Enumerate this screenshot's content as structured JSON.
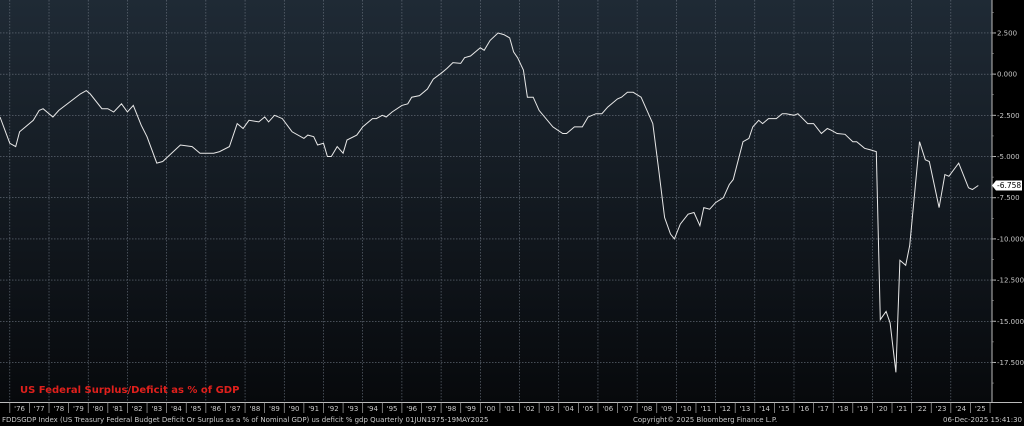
{
  "chart_data": {
    "type": "line",
    "title": "US Federal Surplus/Deficit as % of GDP",
    "xlabel": "",
    "ylabel": "",
    "x_tick_labels": [
      "'76",
      "'77",
      "'78",
      "'79",
      "'80",
      "'81",
      "'82",
      "'83",
      "'84",
      "'85",
      "'86",
      "'87",
      "'88",
      "'89",
      "'90",
      "'91",
      "'92",
      "'93",
      "'94",
      "'95",
      "'96",
      "'97",
      "'98",
      "'99",
      "'00",
      "'01",
      "'02",
      "'03",
      "'04",
      "'05",
      "'06",
      "'07",
      "'08",
      "'09",
      "'10",
      "'11",
      "'12",
      "'13",
      "'14",
      "'15",
      "'16",
      "'17",
      "'18",
      "'19",
      "'20",
      "'21",
      "'22",
      "'23",
      "'24",
      "'25"
    ],
    "y_ticks": [
      2.5,
      0,
      -2.5,
      -5,
      -7.5,
      -10,
      -12.5,
      -15,
      -17.5
    ],
    "y_tick_labels": [
      "2.500",
      "0.000",
      "-2.500",
      "-5.000",
      "-7.500",
      "-10.000",
      "-12.500",
      "-15.000",
      "-17.500"
    ],
    "xlim": [
      1975.5,
      2026.1
    ],
    "ylim": [
      -19.9,
      4.5
    ],
    "grid": true,
    "y_axis_side": "right",
    "last_value_label": "-6.758",
    "line_color": "#e8e8e8",
    "title_color": "#e0201c",
    "series": [
      {
        "points": [
          [
            1975.5,
            -2.6
          ],
          [
            1976.0,
            -4.2
          ],
          [
            1976.3,
            -4.4
          ],
          [
            1976.5,
            -3.5
          ],
          [
            1977.2,
            -2.8
          ],
          [
            1977.5,
            -2.2
          ],
          [
            1977.7,
            -2.1
          ],
          [
            1978.2,
            -2.6
          ],
          [
            1978.5,
            -2.2
          ],
          [
            1979.6,
            -1.2
          ],
          [
            1979.9,
            -1.0
          ],
          [
            1980.1,
            -1.2
          ],
          [
            1980.7,
            -2.1
          ],
          [
            1981.0,
            -2.1
          ],
          [
            1981.3,
            -2.3
          ],
          [
            1981.7,
            -1.8
          ],
          [
            1982.0,
            -2.3
          ],
          [
            1982.3,
            -1.9
          ],
          [
            1982.7,
            -3.1
          ],
          [
            1983.0,
            -3.8
          ],
          [
            1983.5,
            -5.4
          ],
          [
            1983.8,
            -5.3
          ],
          [
            1984.7,
            -4.3
          ],
          [
            1985.3,
            -4.4
          ],
          [
            1985.7,
            -4.8
          ],
          [
            1986.4,
            -4.8
          ],
          [
            1986.7,
            -4.7
          ],
          [
            1987.2,
            -4.4
          ],
          [
            1987.6,
            -3.0
          ],
          [
            1987.9,
            -3.3
          ],
          [
            1988.2,
            -2.8
          ],
          [
            1988.7,
            -2.9
          ],
          [
            1989.0,
            -2.6
          ],
          [
            1989.2,
            -2.9
          ],
          [
            1989.5,
            -2.5
          ],
          [
            1989.9,
            -2.7
          ],
          [
            1990.4,
            -3.5
          ],
          [
            1991.0,
            -3.9
          ],
          [
            1991.2,
            -3.7
          ],
          [
            1991.5,
            -3.8
          ],
          [
            1991.7,
            -4.3
          ],
          [
            1992.0,
            -4.2
          ],
          [
            1992.2,
            -5.0
          ],
          [
            1992.4,
            -5.0
          ],
          [
            1992.7,
            -4.4
          ],
          [
            1993.0,
            -4.8
          ],
          [
            1993.2,
            -4.0
          ],
          [
            1993.7,
            -3.7
          ],
          [
            1994.0,
            -3.2
          ],
          [
            1994.5,
            -2.7
          ],
          [
            1994.7,
            -2.7
          ],
          [
            1995.0,
            -2.5
          ],
          [
            1995.2,
            -2.6
          ],
          [
            1995.5,
            -2.3
          ],
          [
            1996.0,
            -1.9
          ],
          [
            1996.3,
            -1.8
          ],
          [
            1996.5,
            -1.4
          ],
          [
            1996.9,
            -1.3
          ],
          [
            1997.3,
            -0.9
          ],
          [
            1997.6,
            -0.3
          ],
          [
            1998.0,
            0.05
          ],
          [
            1998.3,
            0.35
          ],
          [
            1998.6,
            0.7
          ],
          [
            1999.0,
            0.65
          ],
          [
            1999.2,
            1.0
          ],
          [
            1999.5,
            1.1
          ],
          [
            2000.0,
            1.6
          ],
          [
            2000.2,
            1.45
          ],
          [
            2000.5,
            2.05
          ],
          [
            2000.9,
            2.5
          ],
          [
            2001.2,
            2.4
          ],
          [
            2001.5,
            2.2
          ],
          [
            2001.7,
            1.35
          ],
          [
            2001.9,
            1.0
          ],
          [
            2002.2,
            0.25
          ],
          [
            2002.4,
            -1.4
          ],
          [
            2002.7,
            -1.4
          ],
          [
            2003.0,
            -2.2
          ],
          [
            2003.7,
            -3.2
          ],
          [
            2004.2,
            -3.6
          ],
          [
            2004.4,
            -3.6
          ],
          [
            2004.8,
            -3.2
          ],
          [
            2005.2,
            -3.2
          ],
          [
            2005.5,
            -2.6
          ],
          [
            2005.9,
            -2.4
          ],
          [
            2006.2,
            -2.4
          ],
          [
            2006.5,
            -2.0
          ],
          [
            2007.0,
            -1.5
          ],
          [
            2007.2,
            -1.4
          ],
          [
            2007.5,
            -1.1
          ],
          [
            2007.8,
            -1.1
          ],
          [
            2008.2,
            -1.4
          ],
          [
            2008.8,
            -3.0
          ],
          [
            2009.1,
            -5.8
          ],
          [
            2009.4,
            -8.7
          ],
          [
            2009.7,
            -9.7
          ],
          [
            2009.9,
            -10.0
          ],
          [
            2010.2,
            -9.1
          ],
          [
            2010.6,
            -8.5
          ],
          [
            2010.9,
            -8.4
          ],
          [
            2011.2,
            -9.2
          ],
          [
            2011.4,
            -8.1
          ],
          [
            2011.7,
            -8.2
          ],
          [
            2012.0,
            -7.8
          ],
          [
            2012.4,
            -7.5
          ],
          [
            2012.7,
            -6.7
          ],
          [
            2012.9,
            -6.4
          ],
          [
            2013.4,
            -4.1
          ],
          [
            2013.7,
            -3.9
          ],
          [
            2013.9,
            -3.2
          ],
          [
            2014.2,
            -2.8
          ],
          [
            2014.4,
            -3.0
          ],
          [
            2014.7,
            -2.7
          ],
          [
            2015.1,
            -2.7
          ],
          [
            2015.4,
            -2.4
          ],
          [
            2015.6,
            -2.4
          ],
          [
            2016.0,
            -2.5
          ],
          [
            2016.2,
            -2.4
          ],
          [
            2016.7,
            -3.0
          ],
          [
            2017.0,
            -3.0
          ],
          [
            2017.4,
            -3.6
          ],
          [
            2017.7,
            -3.3
          ],
          [
            2017.9,
            -3.4
          ],
          [
            2018.2,
            -3.6
          ],
          [
            2018.6,
            -3.65
          ],
          [
            2019.0,
            -4.1
          ],
          [
            2019.2,
            -4.1
          ],
          [
            2019.6,
            -4.5
          ],
          [
            2019.9,
            -4.6
          ],
          [
            2020.2,
            -4.7
          ],
          [
            2020.4,
            -14.9
          ],
          [
            2020.7,
            -14.4
          ],
          [
            2020.9,
            -15.1
          ],
          [
            2021.2,
            -18.1
          ],
          [
            2021.4,
            -11.3
          ],
          [
            2021.7,
            -11.6
          ],
          [
            2021.9,
            -10.4
          ],
          [
            2022.4,
            -4.1
          ],
          [
            2022.7,
            -5.2
          ],
          [
            2022.9,
            -5.3
          ],
          [
            2023.4,
            -8.1
          ],
          [
            2023.7,
            -6.1
          ],
          [
            2023.9,
            -6.2
          ],
          [
            2024.4,
            -5.4
          ],
          [
            2024.9,
            -6.9
          ],
          [
            2025.1,
            -7.0
          ],
          [
            2025.4,
            -6.758
          ]
        ]
      }
    ]
  },
  "footer": {
    "description": "FDDSGDP Index (US Treasury Federal Budget Deficit Or Surplus as a % of Nominal GDP) us deficit % gdp Quarterly 01JUN1975-19MAY2025",
    "copyright": "Copyright© 2025 Bloomberg Finance L.P.",
    "timestamp": "06-Dec-2025 15:41:30"
  }
}
